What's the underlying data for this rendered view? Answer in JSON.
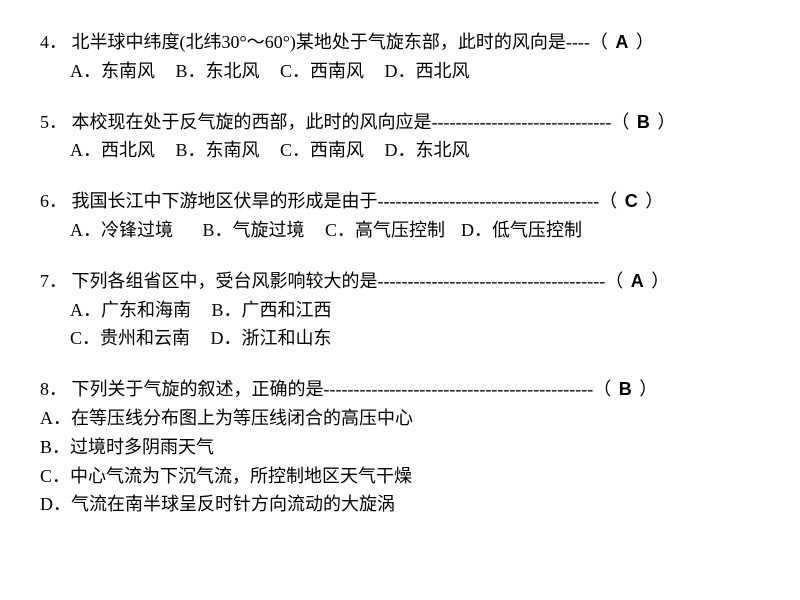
{
  "q4": {
    "num": "4．",
    "text": "北半球中纬度(北纬30°～60°)某地处于气旋东部，此时的风向是",
    "dashes": "----",
    "answer": "A",
    "options": {
      "a": "A．东南风",
      "b": "B．东北风",
      "c": "C．西南风",
      "d": "D．西北风"
    }
  },
  "q5": {
    "num": "5．",
    "text": "本校现在处于反气旋的西部，此时的风向应是",
    "dashes": "------------------------------",
    "answer": "B",
    "options": {
      "a": "A．西北风",
      "b": "B．东南风",
      "c": "C．西南风",
      "d": "D．东北风"
    }
  },
  "q6": {
    "num": "6．",
    "text": "我国长江中下游地区伏旱的形成是由于",
    "dashes": "-------------------------------------",
    "answer": "C",
    "options": {
      "a": "A．冷锋过境",
      "b": "B．气旋过境",
      "c": "C．高气压控制",
      "d": "D．低气压控制"
    }
  },
  "q7": {
    "num": "7．",
    "text": "下列各组省区中，受台风影响较大的是",
    "dashes": "--------------------------------------",
    "answer": "A",
    "options": {
      "a": "A．广东和海南",
      "b": "B．广西和江西",
      "c": "C．贵州和云南",
      "d": "D．浙江和山东"
    }
  },
  "q8": {
    "num": "8．",
    "text": "下列关于气旋的叙述，正确的是",
    "dashes": "---------------------------------------------",
    "answer": "B",
    "options": {
      "a": "A．在等压线分布图上为等压线闭合的高压中心",
      "b": "B．过境时多阴雨天气",
      "c": "C．中心气流为下沉气流，所控制地区天气干燥",
      "d": "D．气流在南半球呈反时针方向流动的大旋涡"
    }
  }
}
